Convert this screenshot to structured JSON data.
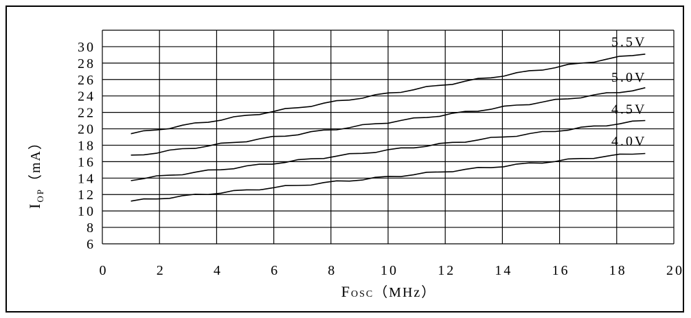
{
  "chart_data": {
    "type": "line",
    "xlabel": {
      "main": "F",
      "sub": "OSC",
      "unit": "（MHz）"
    },
    "ylabel": {
      "main": "I",
      "sub": "OP",
      "unit": "（mA）"
    },
    "xlim": [
      0,
      20
    ],
    "ylim": [
      6,
      32
    ],
    "x_ticks": [
      0,
      2,
      4,
      6,
      8,
      10,
      12,
      14,
      16,
      18,
      20
    ],
    "y_ticks": [
      6,
      8,
      10,
      12,
      14,
      16,
      18,
      20,
      22,
      24,
      26,
      28,
      30
    ],
    "grid": true,
    "series": [
      {
        "name": "5.5V",
        "x": [
          1,
          19
        ],
        "values": [
          19.4,
          29.2
        ]
      },
      {
        "name": "5.0V",
        "x": [
          1,
          19
        ],
        "values": [
          16.7,
          24.9
        ]
      },
      {
        "name": "4.5V",
        "x": [
          1,
          19
        ],
        "values": [
          13.8,
          21.0
        ]
      },
      {
        "name": "4.0V",
        "x": [
          1,
          19
        ],
        "values": [
          11.2,
          17.1
        ]
      }
    ]
  }
}
